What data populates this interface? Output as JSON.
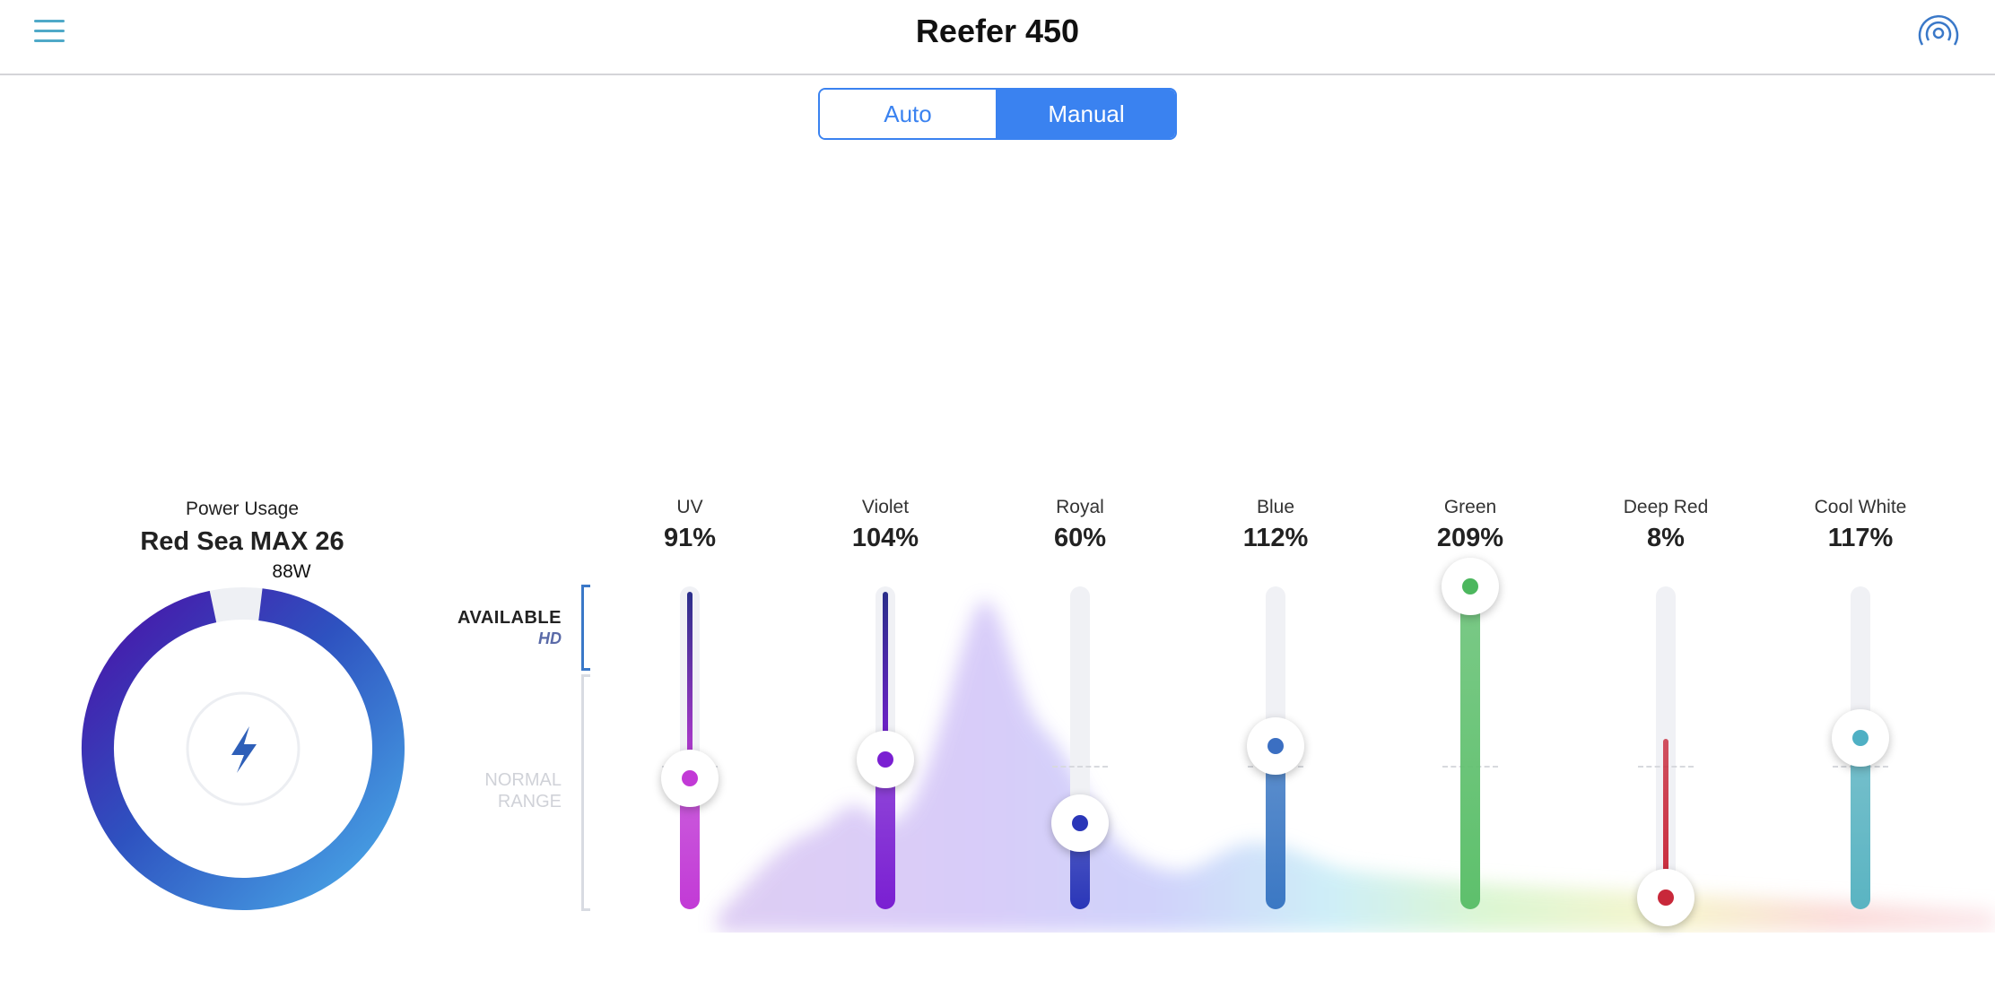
{
  "header": {
    "title": "Reefer 450",
    "menu_icon": "hamburger-menu-icon",
    "cloud_icon": "cloud-connection-icon"
  },
  "mode": {
    "options": [
      "Auto",
      "Manual"
    ],
    "selected": "Manual",
    "accent": "#3a82f0"
  },
  "power": {
    "label": "Power Usage",
    "model": "Red Sea MAX 26",
    "watts": "88W",
    "usage_fraction": 0.97,
    "icon": "lightning-bolt-icon"
  },
  "ranges": {
    "available": "AVAILABLE",
    "hd": "HD",
    "normal_line1": "NORMAL",
    "normal_line2": "RANGE"
  },
  "channels": [
    {
      "name": "UV",
      "value": "91%",
      "percent": 91,
      "color": "#c23ad6",
      "dot": "#c23ad6"
    },
    {
      "name": "Violet",
      "value": "104%",
      "percent": 104,
      "color": "#7a1fd2",
      "dot": "#7a1fd2"
    },
    {
      "name": "Royal",
      "value": "60%",
      "percent": 60,
      "color": "#2a36b8",
      "dot": "#2a36b8"
    },
    {
      "name": "Blue",
      "value": "112%",
      "percent": 112,
      "color": "#3b78c4",
      "dot": "#3b6fc2"
    },
    {
      "name": "Green",
      "value": "209%",
      "percent": 209,
      "color": "#5ec06c",
      "dot": "#4cb75e"
    },
    {
      "name": "Deep Red",
      "value": "8%",
      "percent": 8,
      "color": "#c8283a",
      "dot": "#c8283a"
    },
    {
      "name": "Cool White",
      "value": "117%",
      "percent": 117,
      "color": "#5ab4c2",
      "dot": "#4fb0c4"
    }
  ]
}
